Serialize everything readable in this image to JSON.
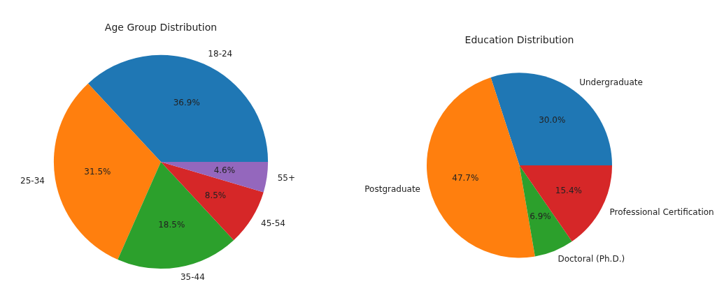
{
  "chart_data": [
    {
      "type": "pie",
      "title": "Age Group Distribution",
      "categories": [
        "18-24",
        "25-34",
        "35-44",
        "45-54",
        "55+"
      ],
      "values": [
        36.9,
        31.5,
        18.5,
        8.5,
        4.6
      ],
      "colors": [
        "#1f77b4",
        "#ff7f0e",
        "#2ca02c",
        "#d62728",
        "#9467bd"
      ],
      "value_labels": [
        "36.9%",
        "31.5%",
        "18.5%",
        "8.5%",
        "4.6%"
      ]
    },
    {
      "type": "pie",
      "title": "Education Distribution",
      "categories": [
        "Undergraduate",
        "Postgraduate",
        "Doctoral (Ph.D.)",
        "Professional Certification"
      ],
      "values": [
        30.0,
        47.7,
        6.9,
        15.4
      ],
      "colors": [
        "#1f77b4",
        "#ff7f0e",
        "#2ca02c",
        "#d62728"
      ],
      "value_labels": [
        "30.0%",
        "47.7%",
        "6.9%",
        "15.4%"
      ]
    }
  ]
}
